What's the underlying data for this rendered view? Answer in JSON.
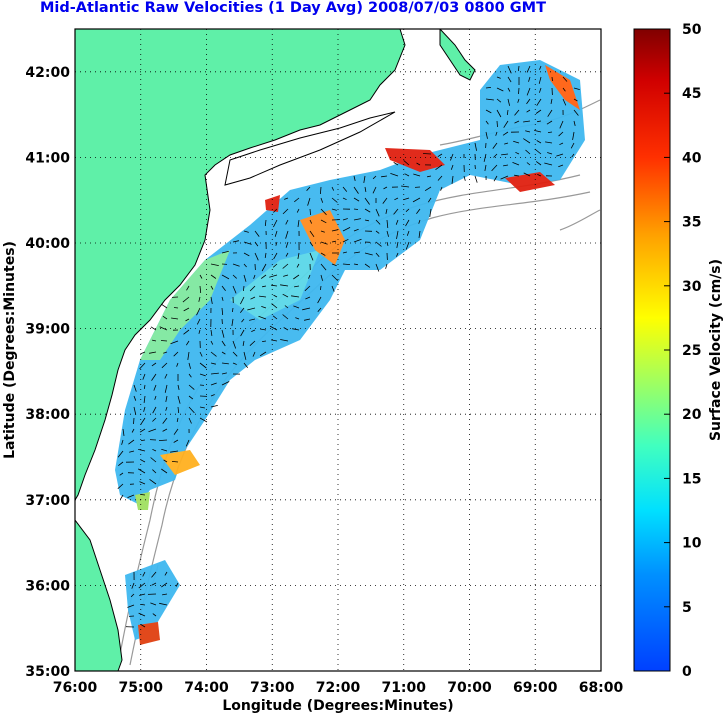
{
  "title": "Mid-Atlantic Raw Velocities (1 Day Avg) 2008/07/03 0800 GMT",
  "x_axis_label": "Longitude (Degrees:Minutes)",
  "y_axis_label": "Latitude (Degrees:Minutes)",
  "colorbar_label": "Surface Velocity (cm/s)",
  "x_ticks": [
    "76:00",
    "75:00",
    "74:00",
    "73:00",
    "72:00",
    "71:00",
    "70:00",
    "69:00",
    "68:00"
  ],
  "y_ticks": [
    "42:00",
    "41:00",
    "40:00",
    "39:00",
    "38:00",
    "37:00",
    "36:00",
    "35:00"
  ],
  "colorbar_ticks": [
    "50",
    "45",
    "40",
    "35",
    "30",
    "25",
    "20",
    "15",
    "10",
    "5",
    "0"
  ],
  "colors": {
    "land": "#5ff0a8",
    "coastline": "#000000",
    "bathymetry": "#999999",
    "grid": "#000000",
    "title": "#0000ee"
  },
  "chart_data": {
    "type": "heatmap",
    "lon_range": [
      -76,
      -68
    ],
    "lat_range": [
      35,
      42.5
    ],
    "colorbar_range": [
      0,
      50
    ],
    "colormap": "jet",
    "grid": true
  }
}
